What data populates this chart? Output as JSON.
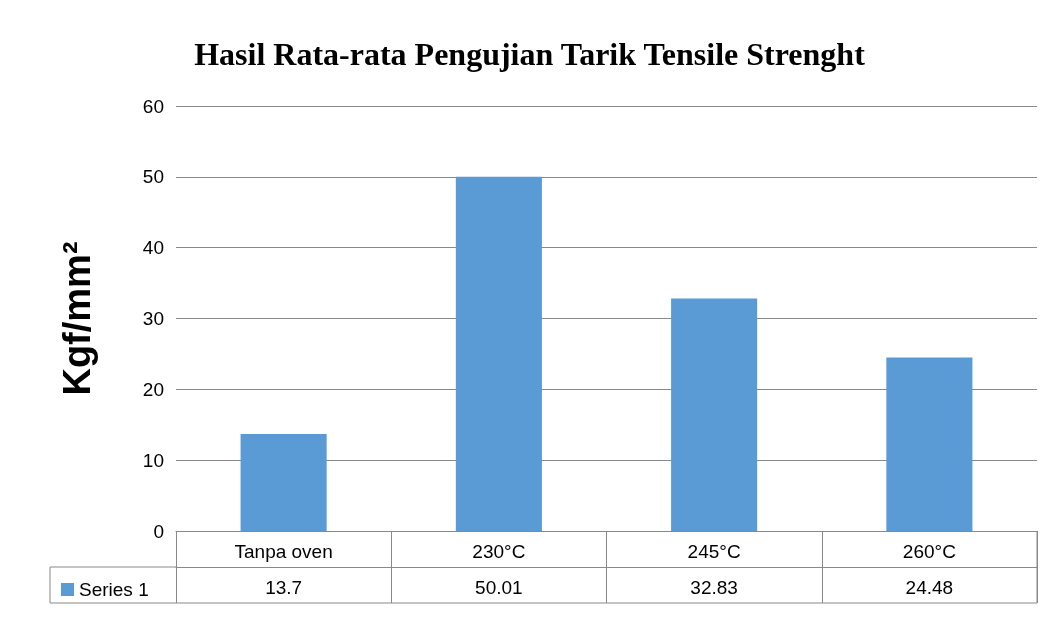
{
  "chart_data": {
    "type": "bar",
    "title": "Hasil Rata-rata Pengujian Tarik Tensile Strenght",
    "ylabel": "Kgf/mm²",
    "categories": [
      "Tanpa oven",
      "230°C",
      "245°C",
      "260°C"
    ],
    "series": [
      {
        "name": "Series 1",
        "color": "#5b9bd5",
        "values": [
          13.7,
          50.01,
          32.83,
          24.48
        ]
      }
    ],
    "ylim": [
      0,
      60
    ],
    "yticks": [
      0,
      10,
      20,
      30,
      40,
      50,
      60
    ],
    "grid": "y",
    "legend": "bottom",
    "data_labels": true
  }
}
